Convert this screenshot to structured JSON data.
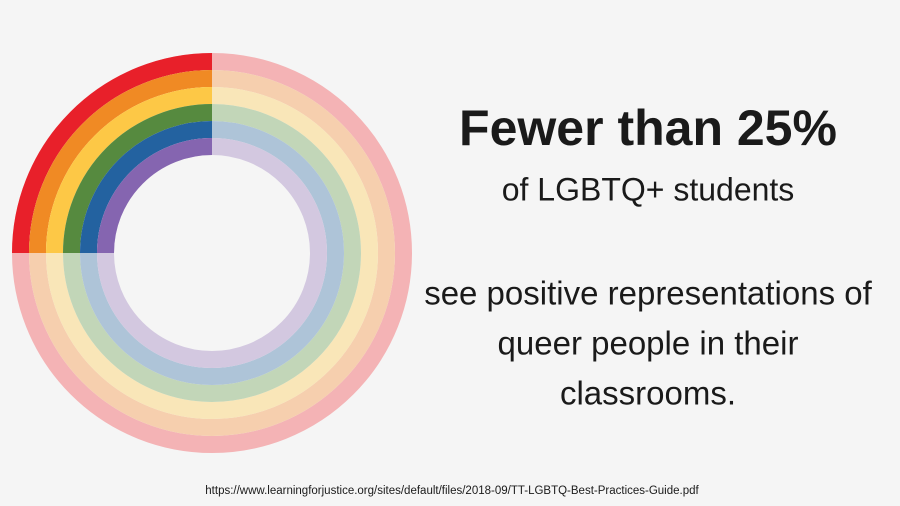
{
  "chart_data": {
    "type": "rings",
    "value": 25,
    "title": "Fewer than 25%",
    "subtitle": "of LGBTQ+ students",
    "body": [
      "see positive representations of",
      "queer people in their",
      "classrooms."
    ],
    "source": "https://www.learningforjustice.org/sites/default/files/2018-09/TT-LGBTQ-Best-Practices-Guide.pdf",
    "rings": [
      {
        "color": "#e8202a",
        "rest_color": "#f4b3b5"
      },
      {
        "color": "#f08a24",
        "rest_color": "#f6cfae"
      },
      {
        "color": "#fdc846",
        "rest_color": "#f9e6b8"
      },
      {
        "color": "#568a3f",
        "rest_color": "#c2d6b8"
      },
      {
        "color": "#2362a0",
        "rest_color": "#aec4d8"
      },
      {
        "color": "#8565b0",
        "rest_color": "#d3c8e0"
      }
    ]
  }
}
